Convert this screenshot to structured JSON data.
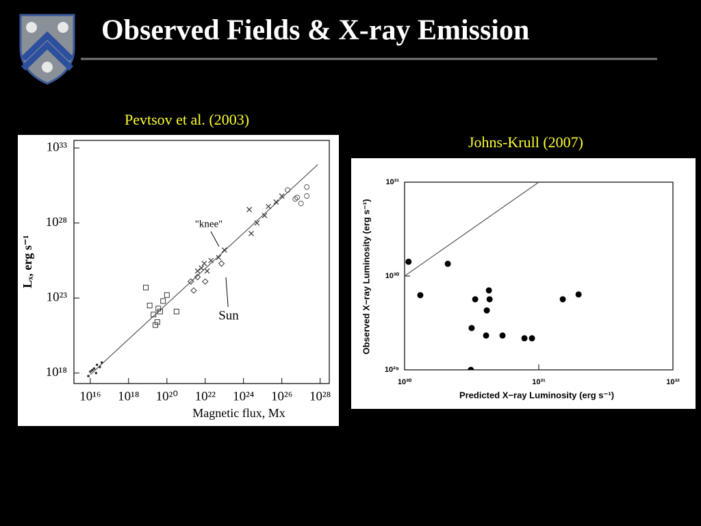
{
  "title": "Observed Fields & X-ray Emission",
  "chart_data": [
    {
      "type": "scatter",
      "title": "Pevtsov et al. (2003)",
      "xlabel": "Magnetic flux, Mx",
      "ylabel": "Lₓ, erg s⁻¹",
      "xscale": "log",
      "yscale": "log",
      "xlim": [
        1400000000000000.0,
        3e+28
      ],
      "ylim": [
        2e+17,
        3.2e+33
      ],
      "xticks": [
        {
          "value": 1e+16,
          "label": "10¹⁶"
        },
        {
          "value": 1e+18,
          "label": "10¹⁸"
        },
        {
          "value": 1e+20,
          "label": "10²⁰"
        },
        {
          "value": 1e+22,
          "label": "10²²"
        },
        {
          "value": 1e+24,
          "label": "10²⁴"
        },
        {
          "value": 1e+26,
          "label": "10²⁶"
        },
        {
          "value": 1e+28,
          "label": "10²⁸"
        }
      ],
      "yticks": [
        {
          "value": 1e+18,
          "label": "10¹⁸"
        },
        {
          "value": 1e+23,
          "label": "10²³"
        },
        {
          "value": 1e+28,
          "label": "10²⁸"
        },
        {
          "value": 1e+33,
          "label": "10³³"
        }
      ],
      "annotations": [
        "\"knee\"",
        "Sun"
      ],
      "series": [
        {
          "marker": "line",
          "color": "#555555",
          "x": [
            1e+16,
            7.6e+27
          ],
          "values": [
            7.9e+17,
            7.9e+31
          ]
        },
        {
          "marker": "dot",
          "color": "#333333",
          "x": [
            1.26e+16,
            2e+16,
            7940000000000000.0,
            3.16e+16,
            1.58e+16,
            3.98e+16,
            1e+16,
            2.24e+16
          ],
          "values": [
            1.58e+18,
            1e+18,
            6.31e+17,
            2.51e+18,
            2e+18,
            5.01e+18,
            1.26e+18,
            3.55e+18
          ]
        },
        {
          "marker": "square",
          "color": "#333333",
          "x": [
            7.94e+18,
            1.26e+19,
            2e+19,
            3.16e+19,
            4.47e+19,
            6.31e+19,
            1e+20,
            3.16e+20,
            2.51e+19,
            3.55e+19
          ],
          "values": [
            5.01e+23,
            3.16e+22,
            7.94e+21,
            2.51e+21,
            1.26e+22,
            6.31e+22,
            1.58e+23,
            1.26e+22,
            1.58e+21,
            2e+22
          ]
        },
        {
          "marker": "cross",
          "color": "#333333",
          "x": [
            3.98e+21,
            8.91e+21,
            2e+22,
            5.01e+22,
            1e+23,
            6.31e+21,
            1.26e+22,
            2e+24,
            5.01e+24,
            1.26e+25,
            5.01e+25,
            1e+26,
            2.51e+24,
            2e+25
          ],
          "values": [
            6.31e+24,
            2e+25,
            3.16e+25,
            5.01e+25,
            1.58e+26,
            1e+25,
            6.31e+24,
            7.94e+28,
            1e+28,
            3.16e+28,
            2.51e+29,
            6.31e+29,
            2e+27,
            1.26e+29
          ]
        },
        {
          "marker": "diamond",
          "color": "#333333",
          "x": [
            1.78e+21,
            2.51e+21,
            1e+22,
            3.98e+21,
            7.08e+22
          ],
          "values": [
            1.26e+24,
            3.16e+23,
            1.26e+24,
            2.51e+24,
            2e+25
          ]
        },
        {
          "marker": "circle",
          "color": "#555555",
          "x": [
            2e+26,
            6.31e+26,
            1e+27,
            2e+27,
            2e+27,
            5.01e+26
          ],
          "values": [
            1.58e+30,
            5.01e+29,
            2e+29,
            2.51e+30,
            6.31e+29,
            3.98e+29
          ]
        }
      ]
    },
    {
      "type": "scatter",
      "title": "Johns-Krull (2007)",
      "xlabel": "Predicted X−ray Luminosity (erg s⁻¹)",
      "ylabel": "Observed X−ray Luminosity (erg s⁻¹)",
      "xscale": "log",
      "yscale": "log",
      "xlim": [
        1e+30,
        1e+32
      ],
      "ylim": [
        1e+29,
        1e+31
      ],
      "xticks": [
        {
          "value": 1e+30,
          "label": "10³⁰"
        },
        {
          "value": 1e+31,
          "label": "10³¹"
        },
        {
          "value": 1e+32,
          "label": "10³²"
        }
      ],
      "yticks": [
        {
          "value": 1e+29,
          "label": "10²⁹"
        },
        {
          "value": 1e+30,
          "label": "10³⁰"
        },
        {
          "value": 1e+31,
          "label": "10³¹"
        }
      ],
      "annotations": [],
      "series": [
        {
          "marker": "line",
          "color": "#555555",
          "x": [
            1e+30,
            1e+31
          ],
          "values": [
            1e+30,
            1e+31
          ]
        },
        {
          "marker": "disc",
          "color": "#000000",
          "x": [
            1.07e+30,
            1.31e+30,
            2.1e+30,
            3.36e+30,
            4.25e+30,
            4.3e+30,
            4.1e+30,
            3.16e+30,
            4.05e+30,
            5.37e+30,
            7.82e+30,
            8.9e+30,
            3.12e+30,
            1.51e+31,
            1.98e+31
          ],
          "values": [
            1.42e+30,
            6.25e+29,
            1.35e+30,
            5.65e+29,
            7.03e+29,
            5.65e+29,
            4.3e+29,
            2.79e+29,
            2.32e+29,
            2.32e+29,
            2.17e+29,
            2.17e+29,
            1e+29,
            5.65e+29,
            6.36e+29
          ]
        }
      ]
    }
  ]
}
